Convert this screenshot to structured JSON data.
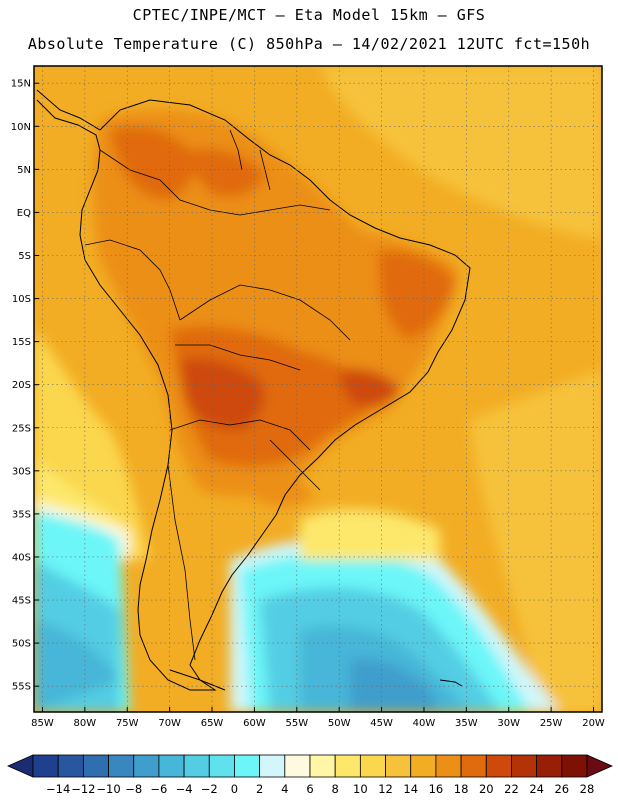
{
  "header": {
    "line1": "CPTEC/INPE/MCT –  Eta Model 15km – GFS",
    "line2": "Absolute Temperature (C) 850hPa – 14/02/2021 12UTC fct=150h"
  },
  "map": {
    "lon_range": [
      -86,
      -19
    ],
    "lat_range": [
      -58,
      17
    ],
    "lat_ticks": [
      "15N",
      "10N",
      "5N",
      "EQ",
      "5S",
      "10S",
      "15S",
      "20S",
      "25S",
      "30S",
      "35S",
      "40S",
      "45S",
      "50S",
      "55S"
    ],
    "lon_ticks": [
      "85W",
      "80W",
      "75W",
      "70W",
      "65W",
      "60W",
      "55W",
      "50W",
      "45W",
      "40W",
      "35W",
      "30W",
      "25W",
      "20W"
    ],
    "gridlines": "dotted"
  },
  "colorbar": {
    "labels": [
      "-14",
      "-12",
      "-10",
      "-8",
      "-6",
      "-4",
      "-2",
      "0",
      "2",
      "4",
      "6",
      "8",
      "10",
      "12",
      "14",
      "16",
      "18",
      "20",
      "22",
      "24",
      "26",
      "28"
    ],
    "colors": [
      "#1f3f8f",
      "#2857a0",
      "#2f6fb0",
      "#3a87c0",
      "#3f9ecc",
      "#47b6d8",
      "#52cde3",
      "#5fe2ee",
      "#6cf6f8",
      "#d2f6fa",
      "#fff9e0",
      "#fff6a8",
      "#fde86c",
      "#fbd74e",
      "#f6c23b",
      "#f2ad24",
      "#ec8f17",
      "#e06b0d",
      "#cd4a0a",
      "#b43208",
      "#981f06",
      "#7d1204"
    ],
    "end_colors": {
      "low": "#1b2c73",
      "high": "#6a0a12"
    }
  }
}
